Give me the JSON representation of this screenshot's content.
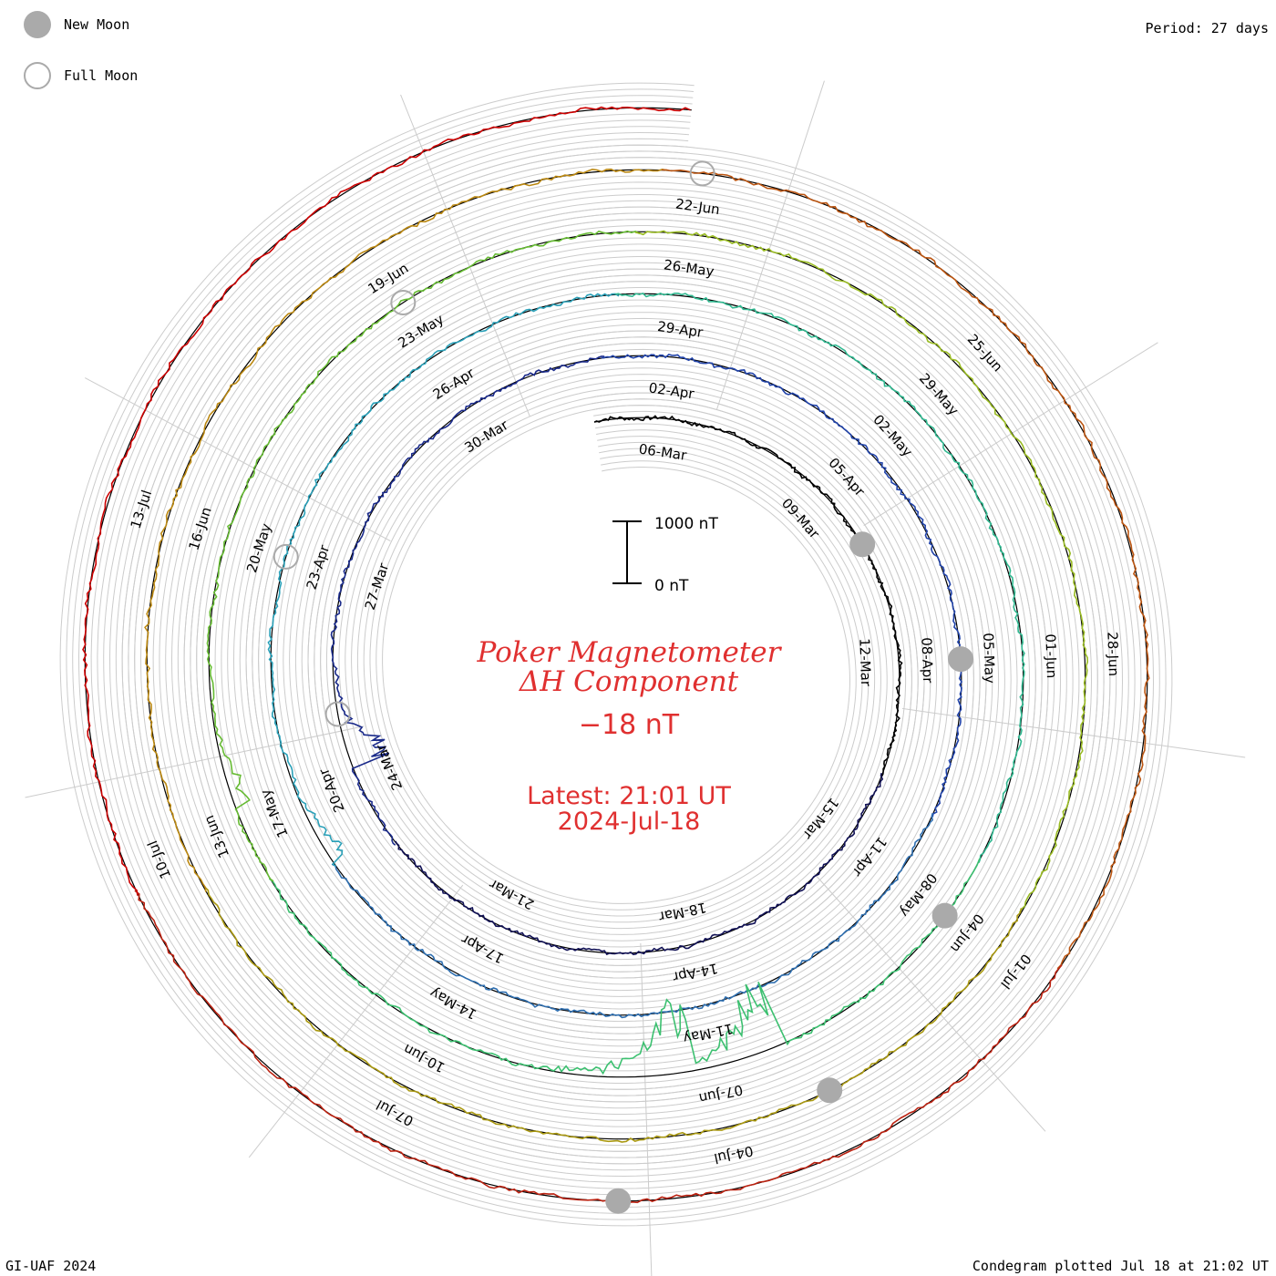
{
  "legend": {
    "new_moon": "New Moon",
    "full_moon": "Full Moon"
  },
  "period": "Period: 27 days",
  "credit": "GI-UAF 2024",
  "plotted": "Condegram plotted Jul 18 at 21:02 UT",
  "title_line1": "Poker Magnetometer",
  "title_line2": "ΔH Component",
  "current_value": "−18 nT",
  "latest_line1": "Latest: 21:01 UT",
  "latest_line2": "2024-Jul-18",
  "scale": {
    "top_label": "1000 nT",
    "bottom_label": "0 nT"
  },
  "chart_data": {
    "type": "condegram spiral line",
    "station": "Poker Magnetometer",
    "component": "ΔH",
    "unit": "nT",
    "period_days": 27,
    "start_date": "2024-03-04",
    "end_date": "2024-07-18",
    "date_labels": [
      "06-Mar",
      "09-Mar",
      "12-Mar",
      "15-Mar",
      "18-Mar",
      "21-Mar",
      "24-Mar",
      "27-Mar",
      "30-Mar",
      "02-Apr",
      "05-Apr",
      "08-Apr",
      "11-Apr",
      "14-Apr",
      "17-Apr",
      "20-Apr",
      "23-Apr",
      "26-Apr",
      "29-Apr",
      "02-May",
      "05-May",
      "08-May",
      "11-May",
      "14-May",
      "17-May",
      "20-May",
      "23-May",
      "26-May",
      "29-May",
      "01-Jun",
      "04-Jun",
      "07-Jun",
      "10-Jun",
      "13-Jun",
      "16-Jun",
      "19-Jun",
      "22-Jun",
      "25-Jun",
      "28-Jun",
      "01-Jul",
      "04-Jul",
      "07-Jul",
      "10-Jul",
      "13-Jul"
    ],
    "new_moon_dates": [
      "2024-03-10",
      "2024-04-08",
      "2024-05-08",
      "2024-06-06",
      "2024-07-05"
    ],
    "full_moon_dates": [
      "2024-03-25",
      "2024-04-23",
      "2024-05-23",
      "2024-06-22"
    ],
    "storms": [
      {
        "date": "2024-03-24",
        "min_nT": -550
      },
      {
        "date": "2024-04-19",
        "min_nT": -250
      },
      {
        "date": "2024-05-10",
        "min_nT": -900
      },
      {
        "date": "2024-05-11",
        "min_nT": -950
      },
      {
        "date": "2024-05-17",
        "min_nT": -200
      }
    ],
    "colors": [
      "#000000",
      "#111155",
      "#1a2a8a",
      "#2244aa",
      "#2f6fb0",
      "#2aa0b8",
      "#30b890",
      "#3cc070",
      "#66bb33",
      "#99bb22",
      "#aa9911",
      "#bb8811",
      "#bb5511",
      "#bb2211",
      "#cc0000"
    ]
  }
}
